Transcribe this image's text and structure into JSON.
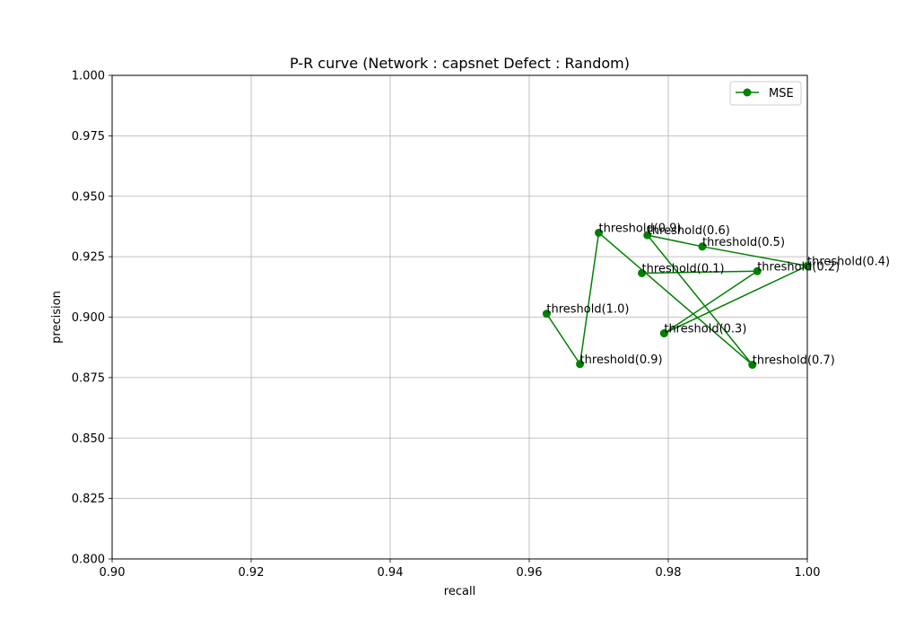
{
  "chart_data": {
    "type": "line",
    "title": "P-R curve (Network : capsnet Defect : Random)",
    "xlabel": "recall",
    "ylabel": "precision",
    "xlim": [
      0.9,
      1.0
    ],
    "ylim": [
      0.8,
      1.0
    ],
    "xticks": [
      0.9,
      0.92,
      0.94,
      0.96,
      0.98,
      1.0
    ],
    "xtick_labels": [
      "0.90",
      "0.92",
      "0.94",
      "0.96",
      "0.98",
      "1.00"
    ],
    "yticks": [
      0.8,
      0.825,
      0.85,
      0.875,
      0.9,
      0.925,
      0.95,
      0.975,
      1.0
    ],
    "ytick_labels": [
      "0.800",
      "0.825",
      "0.850",
      "0.875",
      "0.900",
      "0.925",
      "0.950",
      "0.975",
      "1.000"
    ],
    "grid": true,
    "legend_position": "top-right",
    "series": [
      {
        "name": "MSE",
        "color": "#008000",
        "marker": "circle",
        "points": [
          {
            "x": 0.9625,
            "y": 0.9014,
            "label": "threshold(1.0)"
          },
          {
            "x": 0.9673,
            "y": 0.8806,
            "label": "threshold(0.9)"
          },
          {
            "x": 0.97,
            "y": 0.9349,
            "label": "threshold(0.9)"
          },
          {
            "x": 0.9921,
            "y": 0.8803,
            "label": "threshold(0.7)"
          },
          {
            "x": 0.977,
            "y": 0.9339,
            "label": "threshold(0.6)"
          },
          {
            "x": 0.9849,
            "y": 0.9292,
            "label": "threshold(0.5)"
          },
          {
            "x": 1.0,
            "y": 0.9212,
            "label": "threshold(0.4)"
          },
          {
            "x": 0.9794,
            "y": 0.8933,
            "label": "threshold(0.3)"
          },
          {
            "x": 0.9928,
            "y": 0.919,
            "label": "threshold(0.2)"
          },
          {
            "x": 0.9762,
            "y": 0.9182,
            "label": "threshold(0.1)"
          }
        ]
      }
    ]
  }
}
